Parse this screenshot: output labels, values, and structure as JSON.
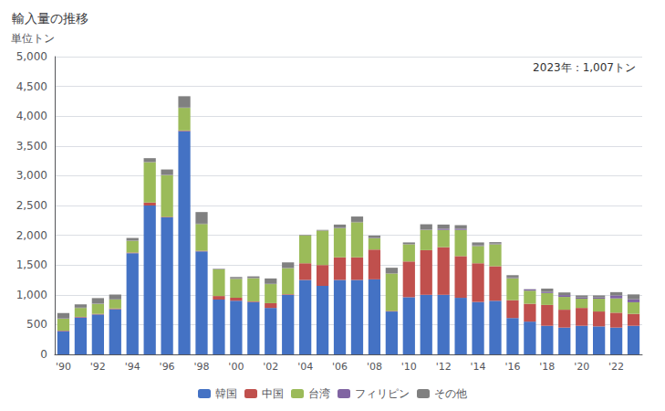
{
  "chart_data": {
    "type": "bar",
    "stacked": true,
    "title": "輸入量の推移",
    "ylabel": "単位トン",
    "annotation": "2023年：1,007トン",
    "categories": [
      "'90",
      null,
      "'92",
      null,
      "'94",
      null,
      "'96",
      null,
      "'98",
      null,
      "'00",
      null,
      "'02",
      null,
      "'04",
      null,
      "'06",
      null,
      "'08",
      null,
      "'10",
      null,
      "'12",
      null,
      "'14",
      null,
      "'16",
      null,
      "'18",
      null,
      "'20",
      null,
      "'22",
      null
    ],
    "series": [
      {
        "name": "韓国",
        "color": "#4472c4",
        "values": [
          390,
          620,
          670,
          760,
          1700,
          2500,
          2300,
          3750,
          1730,
          920,
          900,
          880,
          780,
          1000,
          1250,
          1150,
          1250,
          1250,
          1260,
          720,
          960,
          1000,
          1000,
          950,
          880,
          900,
          610,
          550,
          480,
          450,
          480,
          470,
          450,
          480
        ]
      },
      {
        "name": "中国",
        "color": "#c0504d",
        "values": [
          10,
          10,
          10,
          10,
          10,
          50,
          10,
          10,
          10,
          60,
          50,
          10,
          80,
          10,
          280,
          350,
          380,
          380,
          500,
          10,
          600,
          750,
          800,
          700,
          650,
          580,
          300,
          300,
          350,
          300,
          300,
          250,
          250,
          200
        ]
      },
      {
        "name": "台湾",
        "color": "#9bbb59",
        "values": [
          200,
          150,
          170,
          150,
          200,
          680,
          700,
          380,
          450,
          450,
          320,
          390,
          320,
          440,
          470,
          580,
          490,
          590,
          190,
          630,
          290,
          340,
          290,
          440,
          290,
          370,
          370,
          220,
          200,
          215,
          155,
          215,
          240,
          195
        ]
      },
      {
        "name": "フィリピン",
        "color": "#8064a2",
        "values": [
          5,
          5,
          5,
          5,
          5,
          5,
          5,
          5,
          5,
          5,
          5,
          5,
          5,
          5,
          5,
          5,
          5,
          5,
          5,
          5,
          5,
          5,
          20,
          20,
          10,
          10,
          10,
          20,
          20,
          30,
          20,
          20,
          50,
          50
        ]
      },
      {
        "name": "その他",
        "color": "#808080",
        "values": [
          90,
          55,
          90,
          80,
          40,
          60,
          90,
          190,
          195,
          5,
          25,
          25,
          90,
          90,
          5,
          5,
          55,
          90,
          40,
          90,
          25,
          90,
          70,
          60,
          50,
          25,
          40,
          5,
          55,
          45,
          35,
          35,
          55,
          82
        ]
      }
    ],
    "ylim": [
      0,
      5000
    ],
    "yticks": [
      0,
      500,
      {
        "value": 1000,
        "label": "1,000"
      },
      {
        "value": 1500,
        "label": "1,500"
      },
      {
        "value": 2000,
        "label": "2,000"
      },
      {
        "value": 2500,
        "label": "2,500"
      },
      {
        "value": 3000,
        "label": "3,000"
      },
      {
        "value": 3500,
        "label": "3,500"
      },
      {
        "value": 4000,
        "label": "4,000"
      },
      {
        "value": 4500,
        "label": "4,500"
      },
      {
        "value": 5000,
        "label": "5,000"
      }
    ],
    "grid": true,
    "legend": "bottom"
  }
}
